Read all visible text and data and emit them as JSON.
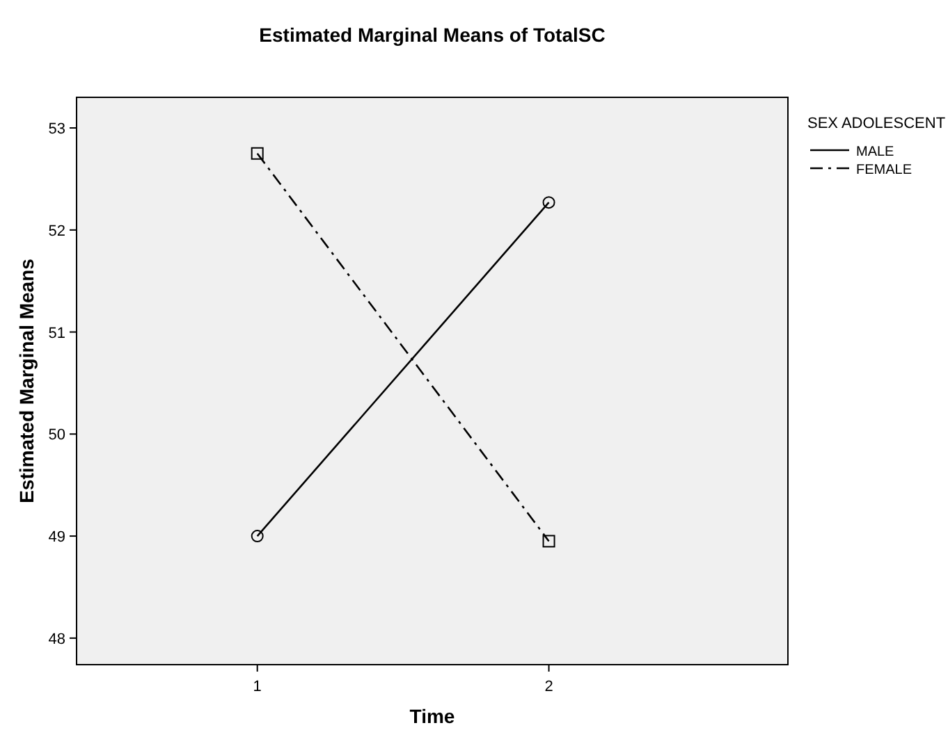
{
  "chart_data": {
    "type": "line",
    "title": "Estimated Marginal Means of TotalSC",
    "xlabel": "Time",
    "ylabel": "Estimated Marginal Means",
    "legend_title": "SEX ADOLESCENT",
    "x": [
      1,
      2
    ],
    "series": [
      {
        "name": "MALE",
        "color": "#000000",
        "values": [
          49.0,
          52.27
        ],
        "marker": "circle",
        "line_style": "solid"
      },
      {
        "name": "FEMALE",
        "color": "#000000",
        "values": [
          52.75,
          48.95
        ],
        "marker": "square",
        "line_style": "dashed"
      }
    ],
    "xlim": [
      0.38,
      2.82
    ],
    "xticks": [
      1,
      2
    ],
    "ylim": [
      47.74,
      53.3
    ],
    "yticks": [
      48,
      49,
      50,
      51,
      52,
      53
    ],
    "grid": false,
    "legend": "top right"
  }
}
